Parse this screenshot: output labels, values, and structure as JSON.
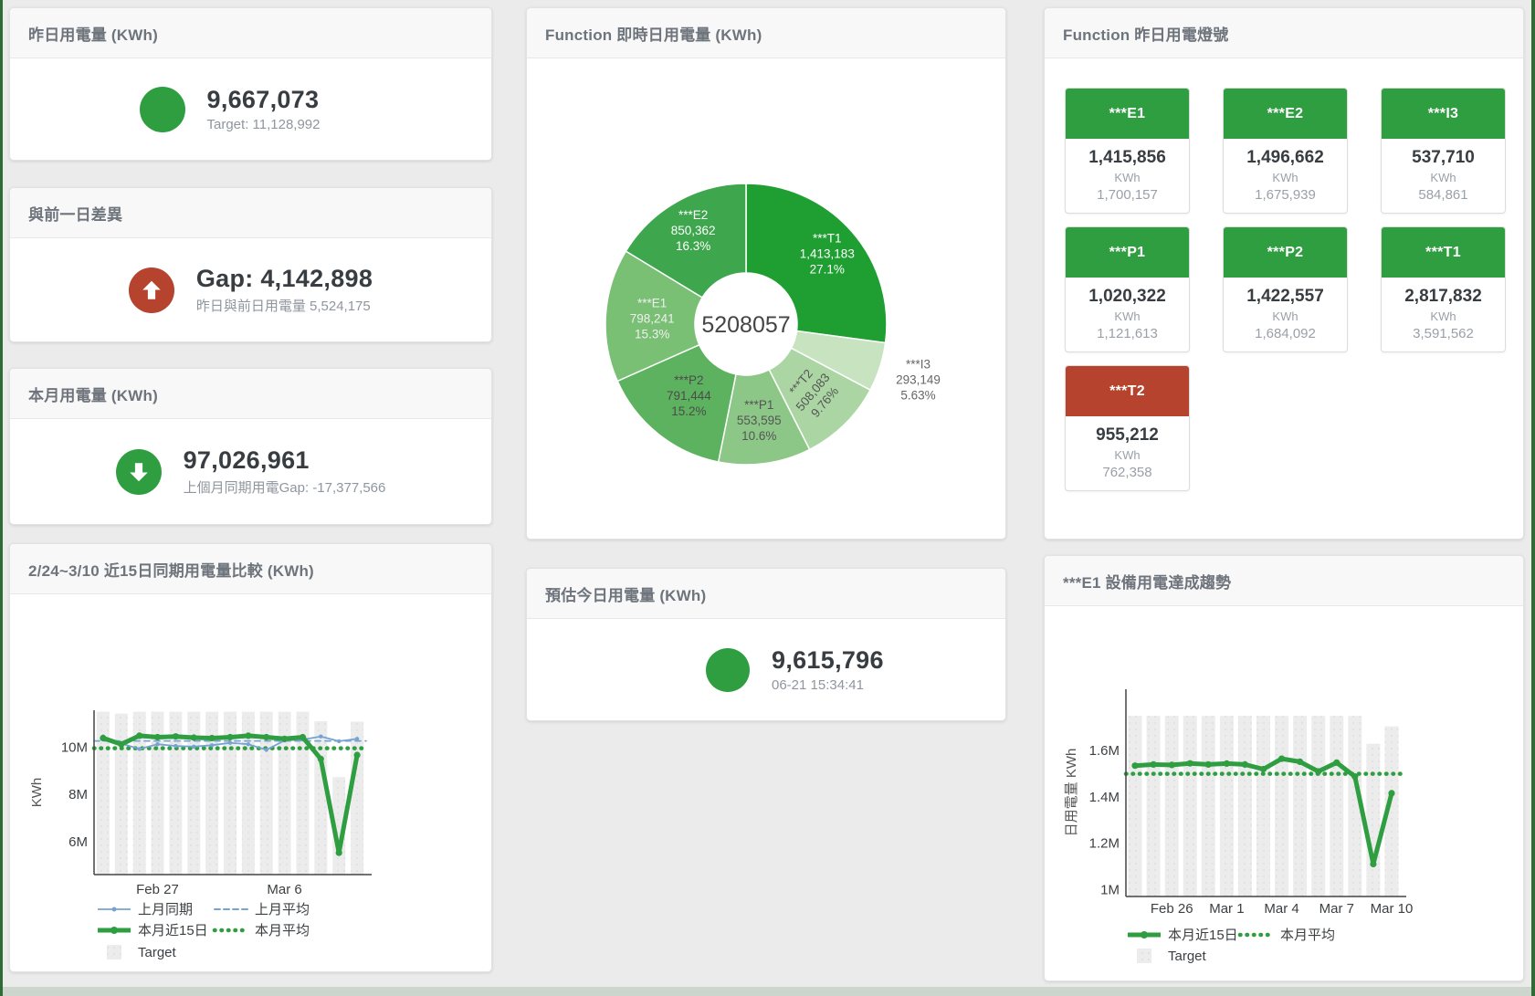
{
  "cards": {
    "yesterday": {
      "title": "昨日用電量 (KWh)",
      "value": "9,667,073",
      "subtitle": "Target: 11,128,992",
      "status_color": "#2f9e41"
    },
    "day_gap": {
      "title": "與前一日差異",
      "value": "Gap: 4,142,898",
      "subtitle": "昨日與前日用電量 5,524,175",
      "status_color": "#b5432e"
    },
    "month": {
      "title": "本月用電量 (KWh)",
      "value": "97,026,961",
      "subtitle": "上個月同期用電Gap: -17,377,566",
      "status_color": "#2f9e41"
    },
    "estimate": {
      "title": "預估今日用電量 (KWh)",
      "value": "9,615,796",
      "subtitle": "06-21 15:34:41",
      "status_color": "#2f9e41"
    }
  },
  "lights": {
    "title": "Function 昨日用電燈號",
    "status_colors": {
      "green": "#2f9e41",
      "red": "#b5432e"
    },
    "tiles": [
      {
        "label": "***E1",
        "value": "1,415,856",
        "unit": "KWh",
        "target": "1,700,157",
        "status": "green"
      },
      {
        "label": "***E2",
        "value": "1,496,662",
        "unit": "KWh",
        "target": "1,675,939",
        "status": "green"
      },
      {
        "label": "***I3",
        "value": "537,710",
        "unit": "KWh",
        "target": "584,861",
        "status": "green"
      },
      {
        "label": "***P1",
        "value": "1,020,322",
        "unit": "KWh",
        "target": "1,121,613",
        "status": "green"
      },
      {
        "label": "***P2",
        "value": "1,422,557",
        "unit": "KWh",
        "target": "1,684,092",
        "status": "green"
      },
      {
        "label": "***T1",
        "value": "2,817,832",
        "unit": "KWh",
        "target": "3,591,562",
        "status": "green"
      },
      {
        "label": "***T2",
        "value": "955,212",
        "unit": "KWh",
        "target": "762,358",
        "status": "red"
      }
    ]
  },
  "chart_data": [
    {
      "id": "realtime_donut",
      "type": "pie",
      "title": "Function 即時日用電量 (KWh)",
      "center_total": "5208057",
      "legend_position": "none",
      "slices": [
        {
          "label": "***T1",
          "value": 1413183,
          "value_text": "1,413,183",
          "percent": 27.1,
          "percent_text": "27.1%",
          "color": "#1f9e31",
          "label_color": "#ffffff",
          "label_pos": "inside",
          "label_r": 118
        },
        {
          "label": "***I3",
          "value": 293149,
          "value_text": "293,149",
          "percent": 5.63,
          "percent_text": "5.63%",
          "color": "#c7e3c0",
          "label_color": "#666666",
          "label_pos": "outside"
        },
        {
          "label": "***T2",
          "value": 508083,
          "value_text": "508,083",
          "percent": 9.76,
          "percent_text": "9.76%",
          "color": "#abd6a4",
          "label_color": "#555555",
          "label_pos": "inside",
          "label_r": 104,
          "label_rotate": -50
        },
        {
          "label": "***P1",
          "value": 553595,
          "value_text": "553,595",
          "percent": 10.6,
          "percent_text": "10.6%",
          "color": "#8cc787",
          "label_color": "#555555",
          "label_pos": "inside",
          "label_r": 106
        },
        {
          "label": "***P2",
          "value": 791444,
          "value_text": "791,444",
          "percent": 15.2,
          "percent_text": "15.2%",
          "color": "#5cb25e",
          "label_color": "#4c4c4c",
          "label_pos": "inside",
          "label_r": 100
        },
        {
          "label": "***E1",
          "value": 798241,
          "value_text": "798,241",
          "percent": 15.3,
          "percent_text": "15.3%",
          "color": "#79bf74",
          "label_color": "#f0f0f0",
          "label_pos": "inside",
          "label_r": 103
        },
        {
          "label": "***E2",
          "value": 850362,
          "value_text": "850,362",
          "percent": 16.3,
          "percent_text": "16.3%",
          "color": "#3ea64c",
          "label_color": "#ffffff",
          "label_pos": "inside",
          "label_r": 118
        }
      ]
    },
    {
      "id": "compare15",
      "type": "line",
      "title": "2/24~3/10 近15日同期用電量比較 (KWh)",
      "xlabel": "",
      "ylabel": "KWh",
      "grid": false,
      "legend_position": "bottom",
      "categories": [
        "Feb 24",
        "Feb 25",
        "Feb 26",
        "Feb 27",
        "Feb 28",
        "Mar 1",
        "Mar 2",
        "Mar 3",
        "Mar 4",
        "Mar 5",
        "Mar 6",
        "Mar 7",
        "Mar 8",
        "Mar 9",
        "Mar 10"
      ],
      "xticks": [
        {
          "index": 3,
          "label": "Feb 27"
        },
        {
          "index": 10,
          "label": "Mar 6"
        }
      ],
      "yticks": [
        {
          "value": 6000000,
          "label": "6M"
        },
        {
          "value": 8000000,
          "label": "8M"
        },
        {
          "value": 10000000,
          "label": "10M"
        }
      ],
      "ylim": [
        4600000,
        11560000
      ],
      "series": [
        {
          "name": "Target",
          "type": "bar",
          "color": "#ececec",
          "values": [
            11500000,
            11420000,
            11500000,
            11500000,
            11500000,
            11500000,
            11500000,
            11500000,
            11500000,
            11500000,
            11500000,
            11500000,
            11100000,
            8730000,
            11080000
          ]
        },
        {
          "name": "上月同期",
          "type": "line",
          "style": "solid",
          "width": 1.8,
          "color": "#76a3d3",
          "values": [
            10450000,
            10150000,
            9920000,
            10120000,
            10050000,
            10020000,
            10080000,
            10180000,
            10120000,
            9880000,
            10280000,
            10320000,
            10450000,
            10250000,
            10350000
          ]
        },
        {
          "name": "上月平均",
          "type": "const",
          "style": "dashed",
          "color": "#76a3d3",
          "value": 10260000
        },
        {
          "name": "本月近15日",
          "type": "line",
          "style": "solid",
          "width": 5,
          "color": "#2f9e41",
          "values": [
            10380000,
            10120000,
            10480000,
            10420000,
            10450000,
            10400000,
            10380000,
            10420000,
            10480000,
            10420000,
            10350000,
            10420000,
            9500000,
            5524175,
            9667073
          ]
        },
        {
          "name": "本月平均",
          "type": "const",
          "style": "dotted",
          "color": "#2f9e41",
          "value": 9950000
        }
      ],
      "legend": [
        [
          "上月同期",
          "上月平均"
        ],
        [
          "本月近15日",
          "本月平均"
        ],
        [
          "Target"
        ]
      ]
    },
    {
      "id": "e1_trend",
      "type": "line",
      "title": "***E1 設備用電達成趨勢",
      "xlabel": "",
      "ylabel": "日用電量 KWh",
      "grid": false,
      "legend_position": "bottom",
      "categories": [
        "Feb 24",
        "Feb 25",
        "Feb 26",
        "Feb 27",
        "Feb 28",
        "Mar 1",
        "Mar 2",
        "Mar 3",
        "Mar 4",
        "Mar 5",
        "Mar 6",
        "Mar 7",
        "Mar 8",
        "Mar 9",
        "Mar 10"
      ],
      "xticks": [
        {
          "index": 2,
          "label": "Feb 26"
        },
        {
          "index": 5,
          "label": "Mar 1"
        },
        {
          "index": 8,
          "label": "Mar 4"
        },
        {
          "index": 11,
          "label": "Mar 7"
        },
        {
          "index": 14,
          "label": "Mar 10"
        }
      ],
      "yticks": [
        {
          "value": 1000000,
          "label": "1M"
        },
        {
          "value": 1200000,
          "label": "1.2M"
        },
        {
          "value": 1400000,
          "label": "1.4M"
        },
        {
          "value": 1600000,
          "label": "1.6M"
        }
      ],
      "ylim": [
        970000,
        1865000
      ],
      "series": [
        {
          "name": "Target",
          "type": "bar",
          "color": "#ececec",
          "values": [
            1750000,
            1750000,
            1750000,
            1750000,
            1750000,
            1750000,
            1750000,
            1750000,
            1750000,
            1750000,
            1750000,
            1750000,
            1750000,
            1630000,
            1705000
          ]
        },
        {
          "name": "本月近15日",
          "type": "line",
          "style": "solid",
          "width": 5,
          "color": "#2f9e41",
          "values": [
            1535000,
            1540000,
            1538000,
            1545000,
            1540000,
            1544000,
            1540000,
            1520000,
            1565000,
            1552000,
            1510000,
            1548000,
            1488000,
            1110000,
            1415856
          ]
        },
        {
          "name": "本月平均",
          "type": "const",
          "style": "dotted",
          "color": "#2f9e41",
          "value": 1500000
        }
      ],
      "legend": [
        [
          "本月近15日",
          "本月平均"
        ],
        [
          "Target"
        ]
      ]
    }
  ]
}
